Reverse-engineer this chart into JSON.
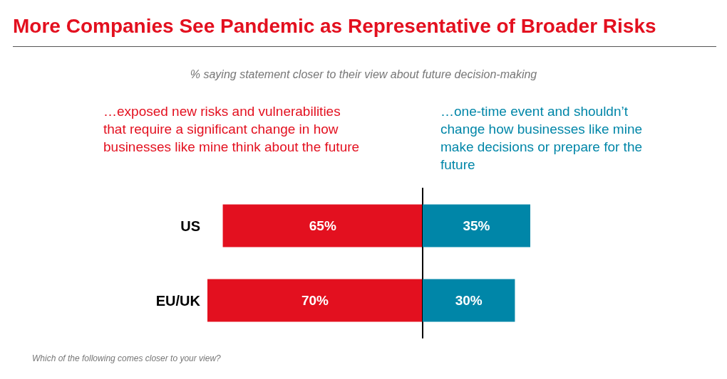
{
  "chart_data": [
    {
      "type": "bar",
      "orientation": "horizontal",
      "title": "More Companies See Pandemic as Representative of Broader Risks",
      "subtitle": "% saying statement closer to their view about future decision-making",
      "categories": [
        "US",
        "EU/UK"
      ],
      "series": [
        {
          "name": "…exposed new risks and vulnerabilities that require a significant change in how businesses like mine think about the future",
          "color": "#e3101f",
          "values": [
            65,
            70
          ],
          "value_labels": [
            "65%",
            "70%"
          ]
        }
      ],
      "xlim": [
        70,
        0
      ],
      "tick_labels": "y",
      "grid": false,
      "legend": false,
      "annotations": [
        "Which of the following comes closer to your view?"
      ]
    },
    {
      "type": "bar",
      "orientation": "horizontal",
      "categories": [
        null,
        null
      ],
      "series": [
        {
          "name": "…one-time event and shouldn’t change how businesses like mine make decisions or prepare for the future",
          "color": "#0086a8",
          "values": [
            35,
            30
          ],
          "value_labels": [
            "35%",
            "30%"
          ]
        }
      ],
      "xlim": [
        0,
        35
      ],
      "tick_labels": false,
      "grid": false,
      "legend": false
    }
  ]
}
